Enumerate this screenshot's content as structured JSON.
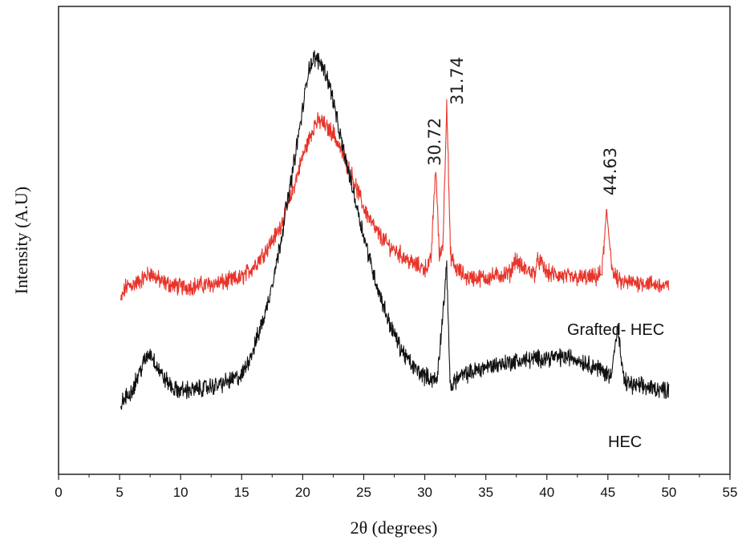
{
  "chart_data": {
    "type": "line",
    "title": "",
    "xlabel": "2θ (degrees)",
    "ylabel": "Intensity (A.U)",
    "xlim": [
      0,
      55
    ],
    "ylim": [
      0,
      100
    ],
    "x_ticks": [
      0,
      5,
      10,
      15,
      20,
      25,
      30,
      35,
      40,
      45,
      50,
      55
    ],
    "y_ticks_shown": false,
    "grid": false,
    "legend": "none",
    "series": [
      {
        "name": "Grafted- HEC",
        "color": "#e8342a",
        "x": [
          5.1,
          5.5,
          6.5,
          7.5,
          8.5,
          10,
          12,
          13.5,
          15,
          16,
          17,
          18,
          19,
          20,
          21,
          21.5,
          22,
          22.5,
          23,
          24,
          25,
          26,
          27,
          28,
          29,
          30,
          30.5,
          30.9,
          31.2,
          31.5,
          31.8,
          32.1,
          32.5,
          33.5,
          35,
          37,
          37.4,
          38,
          39,
          39.3,
          40,
          42,
          44,
          44.5,
          44.9,
          45.4,
          46,
          48,
          50
        ],
        "y": [
          37,
          40,
          41,
          43,
          41,
          40,
          40.5,
          41,
          42,
          44.5,
          48,
          52,
          59,
          68,
          75,
          75.5,
          74,
          73,
          70,
          64,
          57,
          52,
          49,
          47,
          45,
          44,
          45.5,
          66,
          46,
          50,
          80,
          47,
          44,
          42,
          42,
          43,
          46,
          44,
          43,
          46,
          43,
          42,
          42,
          43,
          56,
          43,
          41,
          41,
          40
        ]
      },
      {
        "name": "HEC",
        "color": "#111111",
        "x": [
          5.1,
          6,
          7,
          7.5,
          8.5,
          9.5,
          11,
          13,
          15,
          16,
          17,
          18,
          19,
          20,
          20.5,
          21,
          21.5,
          22,
          22.5,
          23,
          24,
          25,
          26,
          27,
          28,
          29,
          30,
          31,
          31.8,
          32.1,
          32.4,
          33,
          35,
          37,
          40,
          42,
          44,
          45.2,
          45.8,
          46.3,
          47,
          50
        ],
        "y": [
          15,
          18,
          24,
          26,
          21,
          18,
          18,
          19,
          21,
          27,
          35,
          47,
          62,
          78,
          87,
          89,
          88,
          85,
          80,
          73,
          62,
          51,
          41,
          33,
          27,
          23,
          21,
          20,
          44,
          18,
          20,
          21,
          23,
          24,
          25,
          25,
          23,
          21,
          31,
          20,
          19,
          18
        ]
      }
    ],
    "annotations": [
      "30.72",
      "31.74",
      "44.63"
    ],
    "series_labels": [
      "Grafted- HEC",
      "HEC"
    ]
  }
}
